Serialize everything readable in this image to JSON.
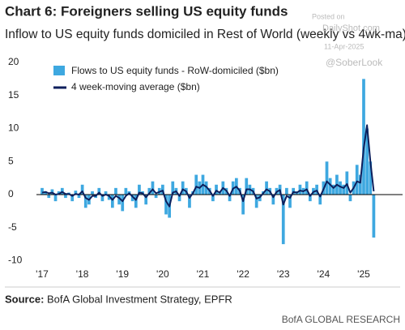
{
  "chart_data": {
    "type": "bar-line",
    "title": "Chart 6: Foreigners selling US equity funds",
    "subtitle": "Inflow to US equity funds domiciled in Rest of World (weekly vs 4wk-ma)",
    "watermark": [
      "Posted on",
      "DailyShot.com",
      "11-Apr-2025",
      "@SoberLook"
    ],
    "source_label": "Source:",
    "source": "BofA Global Investment Strategy, EPFR",
    "footer": "BofA GLOBAL RESEARCH",
    "categories": [
      "'17",
      null,
      null,
      null,
      null,
      null,
      null,
      null,
      null,
      null,
      null,
      null,
      "'18",
      null,
      null,
      null,
      null,
      null,
      null,
      null,
      null,
      null,
      null,
      null,
      "'19",
      null,
      null,
      null,
      null,
      null,
      null,
      null,
      null,
      null,
      null,
      null,
      "'20",
      null,
      null,
      null,
      null,
      null,
      null,
      null,
      null,
      null,
      null,
      null,
      "'21",
      null,
      null,
      null,
      null,
      null,
      null,
      null,
      null,
      null,
      null,
      null,
      "'22",
      null,
      null,
      null,
      null,
      null,
      null,
      null,
      null,
      null,
      null,
      null,
      "'23",
      null,
      null,
      null,
      null,
      null,
      null,
      null,
      null,
      null,
      null,
      null,
      "'24",
      null,
      null,
      null,
      null,
      null,
      null,
      null,
      null,
      null,
      null,
      null,
      "'25",
      null,
      null,
      null
    ],
    "series": [
      {
        "name": "Flows to US equity funds - RoW-domiciled ($bn)",
        "type": "bar",
        "color": "#3ea8e0",
        "values": [
          1,
          0.5,
          -0.5,
          0.8,
          -1,
          0.5,
          1,
          -0.5,
          0.3,
          -1,
          0.6,
          -0.5,
          1.5,
          -2,
          -1.5,
          0.5,
          -0.5,
          1,
          -1,
          0.5,
          -0.8,
          -2,
          1,
          -1.5,
          -2.5,
          1,
          0.5,
          -1,
          -2,
          1.5,
          0.5,
          -1.5,
          1,
          2,
          -0.5,
          1,
          1.5,
          -3,
          -3.5,
          2,
          1,
          -1,
          2,
          1,
          -2,
          0.5,
          3,
          2,
          3,
          2,
          1,
          -1,
          1.5,
          0.5,
          2,
          1,
          -1,
          2,
          2.5,
          1,
          -3,
          2.5,
          1.5,
          1,
          -2,
          -1,
          0.5,
          2,
          1,
          -1.5,
          1,
          1.5,
          -7.5,
          1,
          -2,
          1,
          0.5,
          1.5,
          1,
          2,
          -1,
          1,
          1.5,
          -1.5,
          2,
          5,
          2.5,
          1.5,
          3,
          2,
          1.5,
          3.5,
          -1,
          2,
          4.5,
          3,
          17.5,
          10,
          5,
          -6.5
        ]
      },
      {
        "name": "4 week-moving average ($bn)",
        "type": "line",
        "color": "#0d1f5c",
        "values": [
          0.3,
          0.4,
          0.2,
          0.3,
          0,
          0.1,
          0.4,
          0.1,
          0.1,
          -0.2,
          0.1,
          0,
          0.5,
          -0.5,
          -0.8,
          -0.2,
          -0.2,
          0.3,
          -0.2,
          0,
          -0.2,
          -0.8,
          -0.2,
          -0.5,
          -1,
          -0.2,
          0.2,
          -0.3,
          -0.8,
          0.3,
          0.2,
          -0.4,
          0.2,
          0.8,
          0.2,
          0.4,
          0.6,
          -1,
          -1.8,
          0.3,
          0.5,
          -0.2,
          0.8,
          0.5,
          -0.5,
          0.2,
          1.2,
          1,
          1.5,
          1.2,
          0.6,
          -0.2,
          0.6,
          0.3,
          1,
          0.6,
          -0.2,
          0.9,
          1.2,
          0.6,
          -1,
          0.8,
          0.8,
          0.5,
          -0.6,
          -0.4,
          0.2,
          0.8,
          0.5,
          -0.4,
          0.4,
          0.7,
          -1.5,
          -0.2,
          -0.5,
          0.4,
          0.3,
          0.6,
          0.5,
          0.8,
          -0.2,
          0.4,
          0.6,
          -0.3,
          0.8,
          2,
          1.5,
          1,
          1.5,
          1.2,
          1,
          1.6,
          0.3,
          1,
          2,
          1.8,
          7,
          10.5,
          5,
          0.5
        ]
      }
    ],
    "ylim": [
      -10,
      20
    ],
    "yticks": [
      -10,
      -5,
      0,
      5,
      10,
      15,
      20
    ],
    "grid": false,
    "legend": "top-left"
  }
}
